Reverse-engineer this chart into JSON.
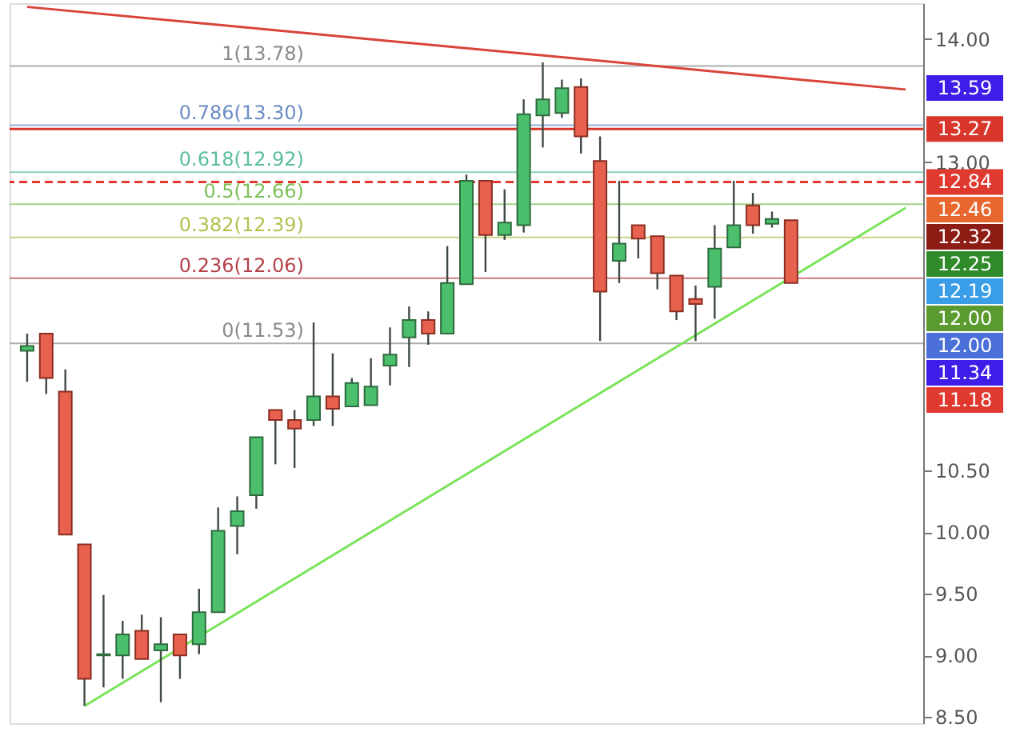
{
  "chart_data": {
    "type": "candlestick",
    "categories": [
      null,
      null,
      null,
      null,
      null,
      null,
      null,
      null,
      null,
      null,
      null,
      null,
      null,
      null,
      null,
      null,
      null,
      null,
      null,
      null,
      null,
      null,
      null,
      null,
      null,
      null,
      null,
      null,
      null,
      null,
      null,
      null,
      null,
      null,
      null,
      null,
      null,
      null,
      null,
      null,
      null,
      null,
      null,
      null,
      null,
      null,
      null
    ],
    "ohlc": [
      [
        11.47,
        11.61,
        11.22,
        11.51
      ],
      [
        11.61,
        11.61,
        11.12,
        11.25
      ],
      [
        11.14,
        11.32,
        9.98,
        9.98
      ],
      [
        9.9,
        9.9,
        8.59,
        8.81
      ],
      [
        9.0,
        9.49,
        8.74,
        9.01
      ],
      [
        9.0,
        9.28,
        8.81,
        9.17
      ],
      [
        9.2,
        9.33,
        8.97,
        8.97
      ],
      [
        9.04,
        9.31,
        8.62,
        9.09
      ],
      [
        9.17,
        9.17,
        8.81,
        9.0
      ],
      [
        9.09,
        9.54,
        9.01,
        9.35
      ],
      [
        9.35,
        10.2,
        9.35,
        10.01
      ],
      [
        10.05,
        10.29,
        9.82,
        10.17
      ],
      [
        10.3,
        10.77,
        10.19,
        10.77
      ],
      [
        10.99,
        10.99,
        10.55,
        10.91
      ],
      [
        10.91,
        10.99,
        10.52,
        10.84
      ],
      [
        10.91,
        11.7,
        10.86,
        11.1
      ],
      [
        11.1,
        11.45,
        10.86,
        11.0
      ],
      [
        11.02,
        11.25,
        11.02,
        11.21
      ],
      [
        11.03,
        11.41,
        11.03,
        11.18
      ],
      [
        11.35,
        11.66,
        11.19,
        11.44
      ],
      [
        11.58,
        11.83,
        11.34,
        11.72
      ],
      [
        11.72,
        11.79,
        11.52,
        11.61
      ],
      [
        11.61,
        12.32,
        11.61,
        12.02
      ],
      [
        12.01,
        12.9,
        12.01,
        12.85
      ],
      [
        12.85,
        12.85,
        12.11,
        12.41
      ],
      [
        12.41,
        12.78,
        12.37,
        12.51
      ],
      [
        12.49,
        13.51,
        12.43,
        13.39
      ],
      [
        13.38,
        13.81,
        13.12,
        13.51
      ],
      [
        13.4,
        13.67,
        13.36,
        13.6
      ],
      [
        13.61,
        13.68,
        13.07,
        13.21
      ],
      [
        13.01,
        13.21,
        11.55,
        11.95
      ],
      [
        12.2,
        12.85,
        12.02,
        12.34
      ],
      [
        12.49,
        12.49,
        12.22,
        12.38
      ],
      [
        12.4,
        12.4,
        11.97,
        12.1
      ],
      [
        12.08,
        12.08,
        11.72,
        11.79
      ],
      [
        11.89,
        12.0,
        11.55,
        11.85
      ],
      [
        11.99,
        12.49,
        11.73,
        12.3
      ],
      [
        12.31,
        12.85,
        12.31,
        12.49
      ],
      [
        12.65,
        12.75,
        12.42,
        12.49
      ],
      [
        12.5,
        12.6,
        12.47,
        12.54
      ],
      [
        12.53,
        12.53,
        12.02,
        12.02
      ],
      null,
      null,
      null,
      null,
      null,
      null
    ],
    "series": [
      {
        "type": "line",
        "color": "#7be35a",
        "line_style": "solid",
        "values": [
          null,
          null,
          null,
          8.59,
          null,
          null,
          null,
          null,
          null,
          null,
          null,
          null,
          null,
          null,
          null,
          null,
          null,
          null,
          null,
          null,
          null,
          null,
          null,
          null,
          null,
          null,
          null,
          null,
          null,
          null,
          null,
          null,
          null,
          null,
          null,
          null,
          null,
          null,
          null,
          null,
          null,
          null,
          null,
          null,
          null,
          null,
          12.63
        ]
      },
      {
        "type": "line",
        "color": "#d9443a",
        "line_style": "solid",
        "values": [
          14.26,
          null,
          null,
          null,
          null,
          null,
          null,
          null,
          null,
          null,
          null,
          null,
          null,
          null,
          null,
          null,
          null,
          null,
          null,
          null,
          null,
          null,
          null,
          null,
          null,
          null,
          null,
          null,
          null,
          null,
          null,
          null,
          null,
          null,
          null,
          null,
          null,
          null,
          null,
          null,
          null,
          null,
          null,
          null,
          null,
          null,
          13.59
        ]
      }
    ],
    "ref_lines": [
      {
        "axis": "y",
        "value": 13.27,
        "label": "13.27",
        "color": "#d8352b",
        "line_style": "solid"
      },
      {
        "axis": "y",
        "value": 12.84,
        "label": "12.84",
        "color": "#e0392f",
        "line_style": "dashed"
      },
      {
        "axis": "y",
        "value": 13.78,
        "color": "#8a8a8a",
        "line_style": "solid"
      },
      {
        "axis": "y",
        "value": 13.3,
        "color": "#6b8cc4",
        "line_style": "solid"
      },
      {
        "axis": "y",
        "value": 12.92,
        "color": "#5bbf9a",
        "line_style": "solid"
      },
      {
        "axis": "y",
        "value": 12.66,
        "color": "#7cc05a",
        "line_style": "solid"
      },
      {
        "axis": "y",
        "value": 12.39,
        "color": "#b4c050",
        "line_style": "solid"
      },
      {
        "axis": "y",
        "value": 12.06,
        "color": "#b5404a",
        "line_style": "solid"
      },
      {
        "axis": "y",
        "value": 11.53,
        "color": "#8a8a8a",
        "line_style": "solid"
      }
    ],
    "annotations": [
      {
        "text": "1(13.78)",
        "y": 13.78
      },
      {
        "text": "0.786(13.30)",
        "y": 13.3
      },
      {
        "text": "0.618(12.92)",
        "y": 12.92
      },
      {
        "text": "0.5(12.66)",
        "y": 12.66
      },
      {
        "text": "0.382(12.39)",
        "y": 12.39
      },
      {
        "text": "0.236(12.06)",
        "y": 12.06
      },
      {
        "text": "0(11.53)",
        "y": 11.53
      },
      "13.59",
      "12.46",
      "12.32",
      "12.25",
      "12.19",
      "12.00",
      "12.00",
      "11.34",
      "11.18"
    ],
    "ylim": [
      8.45,
      14.29
    ],
    "yticks": [
      {
        "value": 8.5,
        "label": "8.50"
      },
      {
        "value": 9,
        "label": "9.00"
      },
      {
        "value": 9.5,
        "label": "9.50"
      },
      {
        "value": 10,
        "label": "10.00"
      },
      {
        "value": 10.5,
        "label": "10.50"
      },
      {
        "value": 13,
        "label": "13.00"
      },
      {
        "value": 14,
        "label": "14.00"
      }
    ],
    "tick_labels": "y",
    "grid": false
  }
}
